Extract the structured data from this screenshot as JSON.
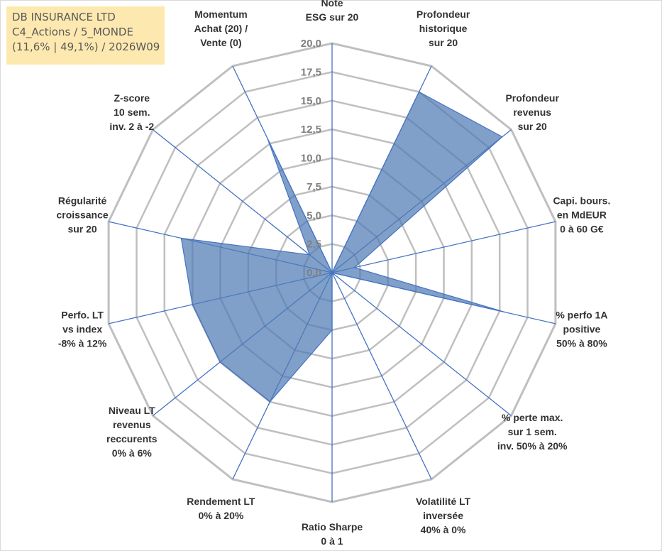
{
  "info_box": {
    "line1": "DB INSURANCE LTD",
    "line2": "C4_Actions / 5_MONDE",
    "line3": "(11,6% | 49,1%) / 2026W09"
  },
  "colors": {
    "fill": "#4f7cb4",
    "fill_opacity": 0.72,
    "spoke": "#4472c4",
    "grid": "#bfbfbf",
    "info_bg": "#fde9b0"
  },
  "chart_data": {
    "type": "radar",
    "title": "",
    "rmax": 20,
    "ticks": [
      "0,0",
      "2,5",
      "5,0",
      "7,5",
      "10,0",
      "12,5",
      "15,0",
      "17,5",
      "20,0"
    ],
    "axes": [
      {
        "label": [
          "Note",
          "ESG sur 20"
        ],
        "value": 0
      },
      {
        "label": [
          "Profondeur",
          "historique",
          "sur 20"
        ],
        "value": 17.5
      },
      {
        "label": [
          "Profondeur",
          "revenus",
          "sur 20"
        ],
        "value": 19
      },
      {
        "label": [
          "Capi. bours.",
          "en MdEUR",
          "0 à 60 G€"
        ],
        "value": 2
      },
      {
        "label": [
          "% perfo 1A",
          "positive",
          "50% à 80%"
        ],
        "value": 15.5
      },
      {
        "label": [
          "% perte max.",
          "sur 1 sem.",
          "inv. 50% à 20%"
        ],
        "value": 0
      },
      {
        "label": [
          "Volatilité LT",
          "inversée",
          "40% à 0%"
        ],
        "value": 0
      },
      {
        "label": [
          "Ratio Sharpe",
          "0 à 1"
        ],
        "value": 5
      },
      {
        "label": [
          "Rendement LT",
          "0% à 20%"
        ],
        "value": 12.5
      },
      {
        "label": [
          "Niveau LT",
          "revenus",
          "reccurents",
          "0% à 6%"
        ],
        "value": 12.5
      },
      {
        "label": [
          "Perfo. LT",
          "vs index",
          "-8% à 12%"
        ],
        "value": 12.5
      },
      {
        "label": [
          "Régularité",
          "croissance",
          "sur 20"
        ],
        "value": 13.5
      },
      {
        "label": [
          "Z-score",
          "10 sem.",
          "inv. 2 à -2"
        ],
        "value": 2.5
      },
      {
        "label": [
          "Momentum",
          "Achat (20) /",
          "Vente (0)"
        ],
        "value": 13
      }
    ]
  }
}
